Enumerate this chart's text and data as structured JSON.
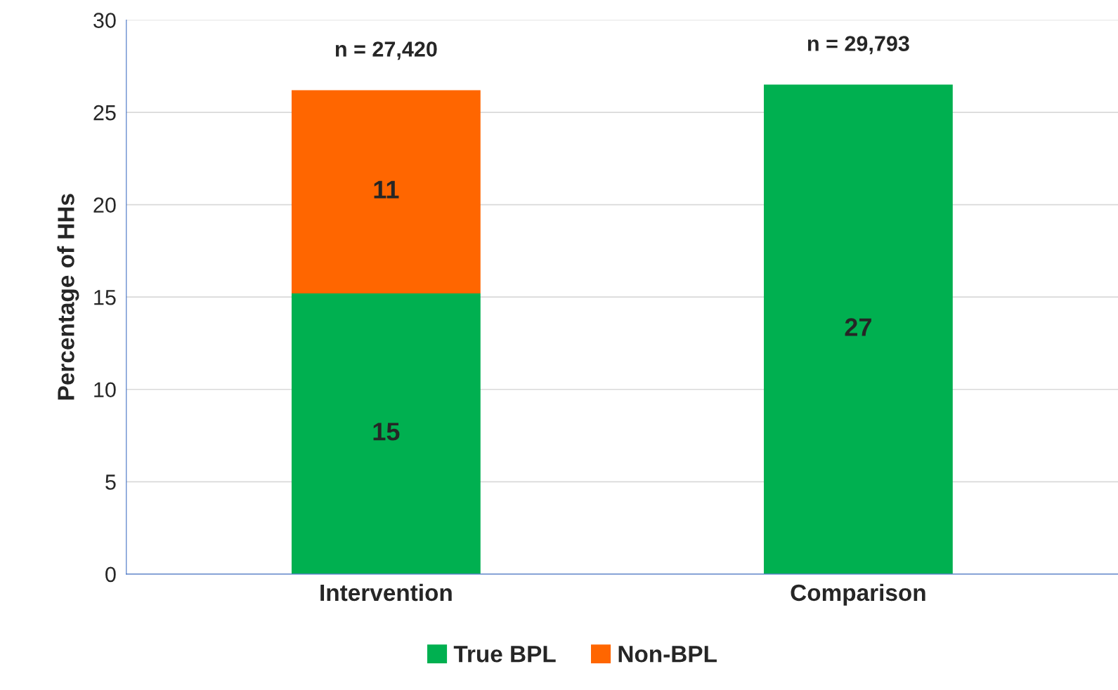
{
  "chart_data": {
    "type": "bar",
    "stacked": true,
    "ylabel": "Percentage of HHs",
    "categories": [
      "Intervention",
      "Comparison"
    ],
    "series": [
      {
        "name": "True BPL",
        "color": "#00b050",
        "values": [
          15.2,
          26.5
        ],
        "value_labels": [
          "15",
          "27"
        ]
      },
      {
        "name": "Non-BPL",
        "color": "#ff6600",
        "values": [
          11.0,
          null
        ],
        "value_labels": [
          "11",
          null
        ]
      }
    ],
    "ylim": [
      0,
      30
    ],
    "yticks": [
      0,
      5,
      10,
      15,
      20,
      25,
      30
    ],
    "grid": "y",
    "legend": "bottom",
    "annotations": [
      {
        "text": "n = 27,420",
        "x": "Intervention",
        "y": 26.2
      },
      {
        "text": "n = 29,793",
        "x": "Comparison",
        "y": 26.5
      }
    ]
  }
}
